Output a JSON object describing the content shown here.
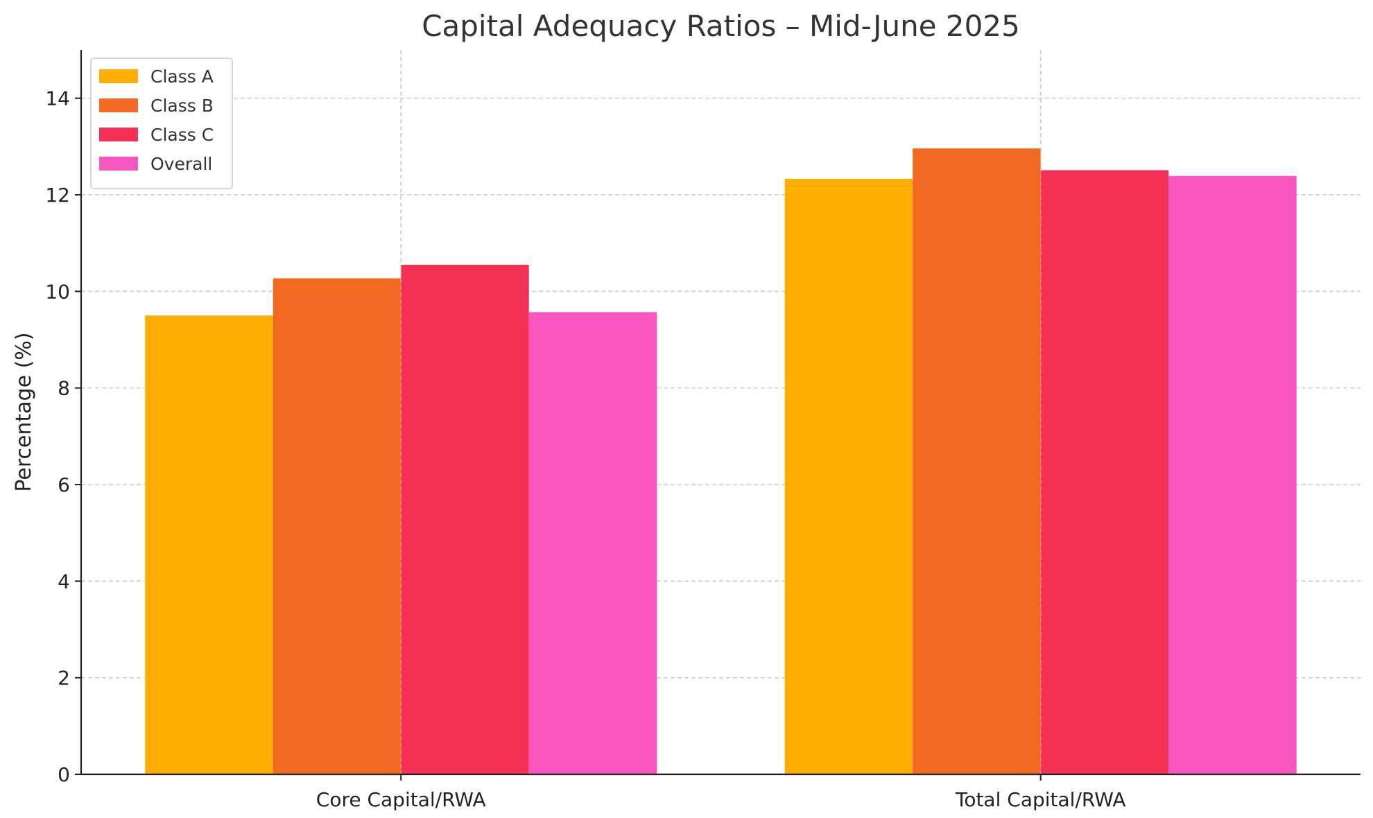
{
  "chart_data": {
    "type": "bar",
    "title": "Capital Adequacy Ratios – Mid-June 2025",
    "xlabel": "",
    "ylabel": "Percentage (%)",
    "categories": [
      "Core Capital/RWA",
      "Total Capital/RWA"
    ],
    "series": [
      {
        "name": "Class A",
        "color": "#ffad02",
        "values": [
          9.5,
          12.33
        ]
      },
      {
        "name": "Class B",
        "color": "#f26a21",
        "values": [
          10.27,
          12.96
        ]
      },
      {
        "name": "Class C",
        "color": "#f53155",
        "values": [
          10.55,
          12.51
        ]
      },
      {
        "name": "Overall",
        "color": "#f957bf",
        "values": [
          9.57,
          12.39
        ]
      }
    ],
    "ylim": [
      0,
      15
    ],
    "yticks": [
      0,
      2,
      4,
      6,
      8,
      10,
      12,
      14
    ],
    "grid": true,
    "legend_position": "top-left"
  }
}
